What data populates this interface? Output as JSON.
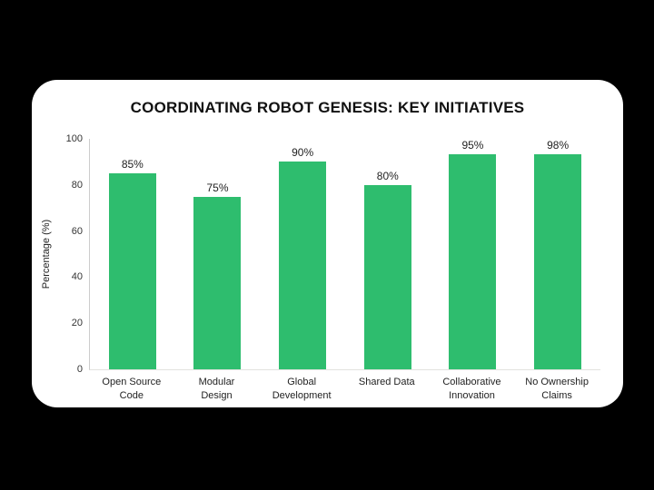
{
  "page": {
    "background_color": "#000000",
    "card_background_color": "#ffffff"
  },
  "chart_data": {
    "type": "bar",
    "title": "COORDINATING ROBOT GENESIS: KEY INITIATIVES",
    "categories": [
      "Open Source\nCode",
      "Modular\nDesign",
      "Global\nDevelopment",
      "Shared Data",
      "Collaborative\nInnovation",
      "No Ownership\nClaims"
    ],
    "values": [
      85,
      75,
      90,
      80,
      95,
      98
    ],
    "value_labels": [
      "85%",
      "75%",
      "90%",
      "80%",
      "95%",
      "98%"
    ],
    "xlabel": "",
    "ylabel": "Percentage (%)",
    "ylim": [
      0,
      100
    ],
    "yticks": [
      0,
      20,
      40,
      60,
      80,
      100
    ],
    "grid": false,
    "legend": "none",
    "bar_color": "#2ebd6e"
  }
}
